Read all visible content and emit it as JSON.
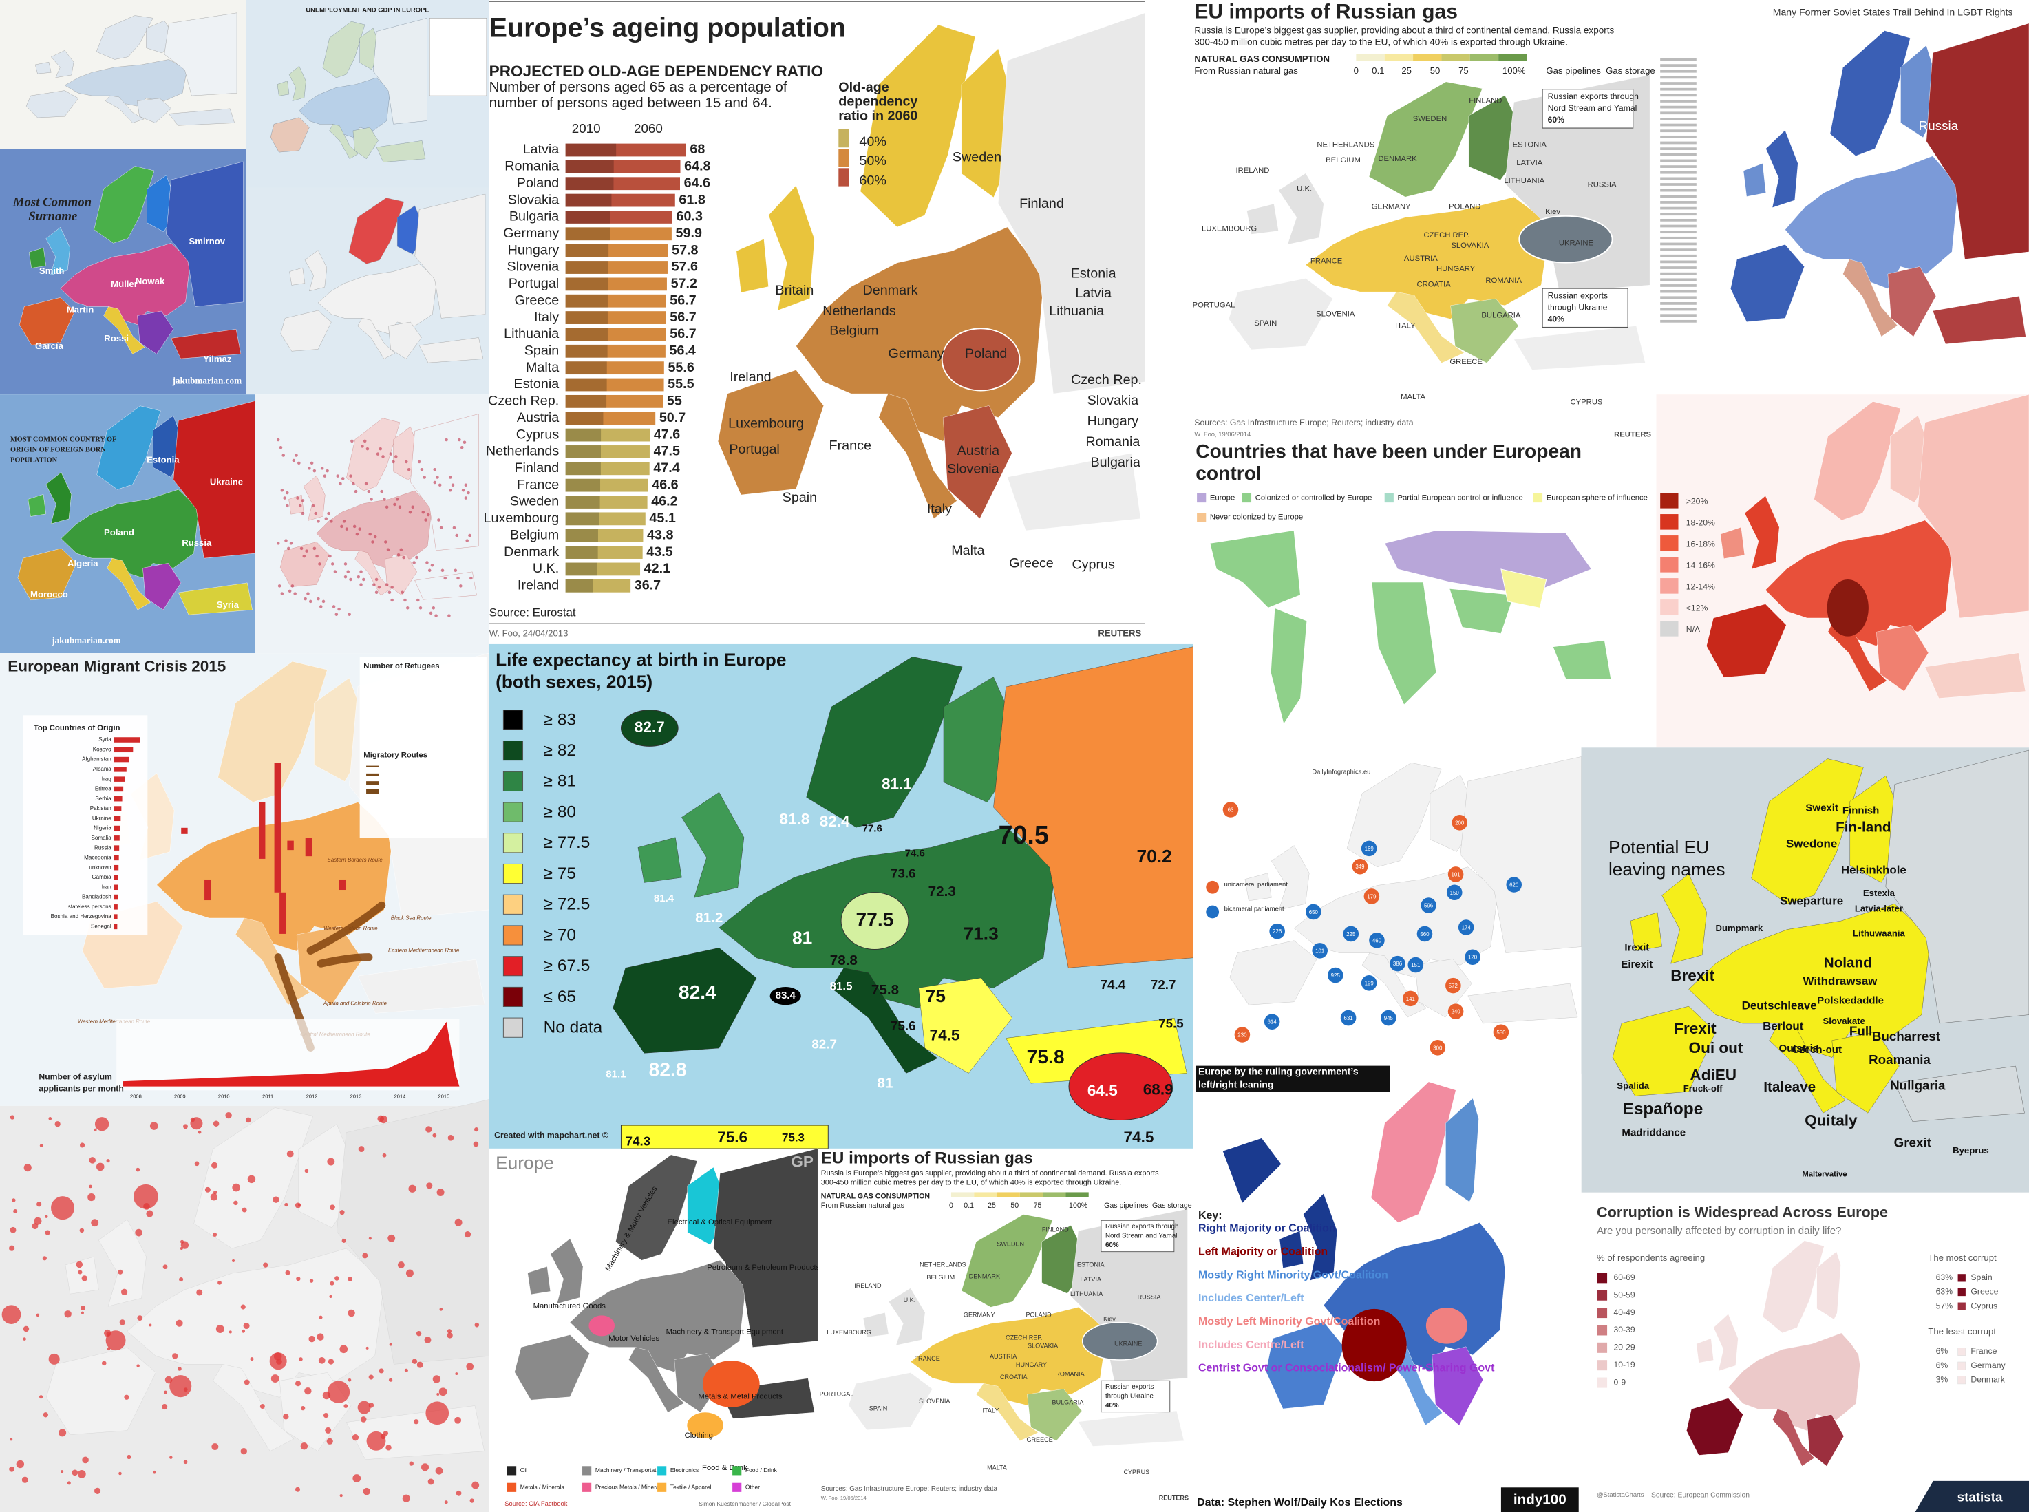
{
  "panels": {
    "unemployment": {
      "title": "UNEMPLOYMENT AND GDP IN EUROPE"
    },
    "surname": {
      "title": [
        "Most Common",
        "Surname"
      ],
      "names": [
        "Martin",
        "García",
        "Müller",
        "Smirnov",
        "Yilmaz",
        "Nowak",
        "Smith",
        "Rossi"
      ],
      "credit": "jakubmarian.com"
    },
    "origin": {
      "title": [
        "MOST COMMON COUNTRY OF",
        "ORIGIN OF FOREIGN BORN",
        "POPULATION"
      ],
      "names": [
        "Ukraine",
        "Russia",
        "Poland",
        "Algeria",
        "Syria",
        "Morocco",
        "Estonia",
        "Ukraine"
      ],
      "credit": "jakubmarian.com"
    },
    "ageing": {
      "title": "Europe’s ageing population",
      "subtitle": "PROJECTED OLD-AGE DEPENDENCY RATIO",
      "description": [
        "Number of persons aged 65 as a percentage of",
        "number of persons aged between 15 and 64."
      ],
      "years": [
        "2010",
        "2060"
      ],
      "countries": [
        "Latvia",
        "Romania",
        "Poland",
        "Slovakia",
        "Bulgaria",
        "Germany",
        "Hungary",
        "Slovenia",
        "Portugal",
        "Greece",
        "Italy",
        "Lithuania",
        "Spain",
        "Malta",
        "Estonia",
        "Czech Rep.",
        "Austria",
        "Cyprus",
        "Netherlands",
        "Finland",
        "France",
        "Sweden",
        "Luxembourg",
        "Belgium",
        "Denmark",
        "U.K.",
        "Ireland"
      ],
      "values": [
        68,
        64.8,
        64.6,
        61.8,
        60.3,
        59.9,
        57.8,
        57.6,
        57.2,
        56.7,
        56.7,
        56.7,
        56.4,
        55.6,
        55.5,
        55,
        50.7,
        47.6,
        47.5,
        47.4,
        46.6,
        46.2,
        45.1,
        43.8,
        43.5,
        42.1,
        36.7
      ],
      "legend_title": [
        "Old-age",
        "dependency",
        "ratio in 2060"
      ],
      "legend": [
        {
          "value": 40,
          "label": "40%",
          "color": "#c6b25e"
        },
        {
          "value": 50,
          "label": "50%",
          "color": "#d4893e"
        },
        {
          "value": 60,
          "label": "60%",
          "color": "#b9503c"
        }
      ],
      "map_labels": [
        "Sweden",
        "Finland",
        "Estonia",
        "Latvia",
        "Lithuania",
        "Britain",
        "Denmark",
        "Netherlands",
        "Belgium",
        "Ireland",
        "Germany",
        "Poland",
        "Czech Rep.",
        "Slovakia",
        "Hungary",
        "Luxembourg",
        "France",
        "Austria",
        "Slovenia",
        "Romania",
        "Bulgaria",
        "Portugal",
        "Spain",
        "Italy",
        "Malta",
        "Greece",
        "Cyprus"
      ],
      "source": "Source: Eurostat",
      "credit": "W. Foo, 24/04/2013",
      "brand": "REUTERS"
    },
    "gas": {
      "title": "EU imports of Russian gas",
      "description": [
        "Russia is Europe’s biggest gas supplier, providing about a third of continental demand. Russia exports",
        "300-450 million cubic metres per day to the EU, of which 40% is exported through Ukraine."
      ],
      "scale_title": "NATURAL GAS CONSUMPTION",
      "scale_subtitle": "From Russian natural gas",
      "scale": [
        "0",
        "0.1",
        "25",
        "50",
        "75",
        "100%"
      ],
      "pipelines": "Gas pipelines",
      "storage": "Gas storage",
      "callout_north": [
        "Russian exports through",
        "Nord Stream and Yamal",
        "60%"
      ],
      "callout_south": [
        "Russian exports",
        "through Ukraine",
        "40%"
      ],
      "countries": [
        "FINLAND",
        "SWEDEN",
        "RUSSIA",
        "ESTONIA",
        "LATVIA",
        "LITHUANIA",
        "DENMARK",
        "NETHERLANDS",
        "BELGIUM",
        "IRELAND",
        "U.K.",
        "GERMANY",
        "POLAND",
        "CZECH REP.",
        "SLOVAKIA",
        "UKRAINE",
        "HUNGARY",
        "ROMANIA",
        "AUSTRIA",
        "FRANCE",
        "LUXEMBOURG",
        "PORTUGAL",
        "SPAIN",
        "SLOVENIA",
        "CROATIA",
        "ITALY",
        "BULGARIA",
        "GREECE",
        "MALTA",
        "CYPRUS",
        "Kiev"
      ],
      "source": "Sources: Gas Infrastructure Europe; Reuters; industry data",
      "credit": "W. Foo, 19/06/2014",
      "brand": "REUTERS"
    },
    "lgbt": {
      "title": "Many Former Soviet States Trail Behind In LGBT Rights",
      "label": "Russia"
    },
    "control": {
      "title": [
        "Countries that have been under European",
        "control"
      ],
      "legend": [
        {
          "label": "Europe",
          "color": "#b8a6d9"
        },
        {
          "label": "Colonized or controlled by Europe",
          "color": "#8fd08a"
        },
        {
          "label": "Partial European control or influence",
          "color": "#a6dcc8"
        },
        {
          "label": "European sphere of influence",
          "color": "#f6f59a"
        },
        {
          "label": "Never colonized by Europe",
          "color": "#f6c48e"
        }
      ]
    },
    "redmap": {
      "legend": [
        {
          "label": ">20%",
          "color": "#a8200f"
        },
        {
          "label": "18-20%",
          "color": "#d8351f"
        },
        {
          "label": "16-18%",
          "color": "#ee5a3c"
        },
        {
          "label": "14-16%",
          "color": "#f48070"
        },
        {
          "label": "12-14%",
          "color": "#f7a39a"
        },
        {
          "label": "<12%",
          "color": "#fad0cb"
        },
        {
          "label": "N/A",
          "color": "#d6d6d6"
        }
      ]
    },
    "migrant": {
      "title": "European Migrant Crisis 2015",
      "top_title": "Top Countries of Origin",
      "origins": [
        "Syria",
        "Kosovo",
        "Afghanistan",
        "Albania",
        "Iraq",
        "Eritrea",
        "Serbia",
        "Pakistan",
        "Ukraine",
        "Nigeria",
        "Somalia",
        "Russia",
        "Macedonia",
        "unknown",
        "Gambia",
        "Iran",
        "Bangladesh",
        "stateless persons",
        "Bosnia and Herzegovina",
        "Senegal"
      ],
      "refugees_title": "Number of Refugees",
      "routes_title": "Migratory Routes",
      "routes": [
        "Eastern Borders Route",
        "Western Balkan Route",
        "Eastern Mediterranean Route",
        "Central Mediterranean Route",
        "Western Mediterranean Route",
        "Apulia and Calabria Route",
        "Black Sea Route"
      ],
      "chart_title": [
        "Number of asylum",
        "applicants per month"
      ],
      "years": [
        "2008",
        "2009",
        "2010",
        "2011",
        "2012",
        "2013",
        "2014",
        "2015"
      ]
    },
    "life": {
      "title": [
        "Life expectancy at birth in Europe",
        "(both sexes, 2015)"
      ],
      "legend": [
        {
          "label": "≥ 83",
          "color": "#000000"
        },
        {
          "label": "≥ 82",
          "color": "#0e4a1f"
        },
        {
          "label": "≥ 81",
          "color": "#2f8545"
        },
        {
          "label": "≥ 80",
          "color": "#6fbb6b"
        },
        {
          "label": "≥ 77.5",
          "color": "#d4f0a0"
        },
        {
          "label": "≥ 75",
          "color": "#ffff33"
        },
        {
          "label": "≥ 72.5",
          "color": "#fdd080"
        },
        {
          "label": "≥ 70",
          "color": "#f6903c"
        },
        {
          "label": "≥ 67.5",
          "color": "#e21f26"
        },
        {
          "label": "≤ 65",
          "color": "#7a0008"
        },
        {
          "label": "No data",
          "color": "#d4d4d4"
        }
      ],
      "values": [
        "82.7",
        "81.1",
        "81.8",
        "82.4",
        "70.5",
        "70.2",
        "77.6",
        "74.6",
        "73.6",
        "72.3",
        "81.4",
        "81.2",
        "81",
        "77.5",
        "71.3",
        "78.8",
        "82.4",
        "83.4",
        "81.5",
        "75.8",
        "75",
        "74.4",
        "72.7",
        "75.5",
        "74.5",
        "75.6",
        "75.8",
        "82.7",
        "82.8",
        "81",
        "81.1",
        "64.5",
        "68.9",
        "74.5",
        "74.3",
        "75.6",
        "75.3"
      ],
      "credit": "Created with mapchart.net ©"
    },
    "exports": {
      "title": "Europe",
      "brand": "GP",
      "legend": [
        {
          "label": "Oil",
          "color": "#222222"
        },
        {
          "label": "Machinery / Transportation",
          "color": "#8a8a8a"
        },
        {
          "label": "Electronics",
          "color": "#19c6d6"
        },
        {
          "label": "Food / Drink",
          "color": "#39b54a"
        },
        {
          "label": "Metals / Minerals",
          "color": "#f15a24"
        },
        {
          "label": "Precious Metals / Minerals",
          "color": "#ee5d8f"
        },
        {
          "label": "Textile / Apparel",
          "color": "#fbb03b"
        },
        {
          "label": "Other",
          "color": "#d63fd6"
        }
      ],
      "labels": [
        "Machinery & Motor Vehicles",
        "Electrical & Optical Equipment",
        "Petroleum & Petroleum Products",
        "Manufactured Goods",
        "Motor Vehicles",
        "Machinery & Transport Equipment",
        "Metals & Metal Products",
        "Clothing",
        "Food & Drink"
      ],
      "source": "Source: CIA Factbook",
      "credit": "Simon Kuestenmacher / GlobalPost"
    },
    "parliament": {
      "brand": "DailyInfographics.eu",
      "legend": [
        "unicameral parliament",
        "bicameral parliament"
      ],
      "seats": [
        "63",
        "200",
        "169",
        "349",
        "179",
        "101",
        "620",
        "650",
        "226",
        "150",
        "225",
        "460",
        "560",
        "174",
        "925",
        "631",
        "199",
        "386",
        "614",
        "945",
        "572",
        "240",
        "300",
        "550",
        "230",
        "141",
        "101",
        "151",
        "596",
        "120"
      ]
    },
    "leaving": {
      "title": [
        "Potential EU",
        "leaving names"
      ],
      "names": [
        "Brexit",
        "Irexit",
        "Eirexit",
        "Frexit",
        "Oui out",
        "AdiEU",
        "Fruck-off",
        "Españope",
        "Madriddance",
        "Spalida",
        "Italeave",
        "Quitaly",
        "Grexit",
        "Noland",
        "Withdrawsaw",
        "Polskedaddle",
        "Deutschleave",
        "Swexit",
        "Swedone",
        "Fin-land",
        "Finnish",
        "Helsinkhole",
        "Dumpmark",
        "Sweparture",
        "Czech-out",
        "Bucharrest",
        "Roamania",
        "Nullgaria",
        "Byeprus",
        "Maltervative",
        "Full",
        "Berlout",
        "Outstria",
        "Slovakate",
        "Estexia",
        "Latvia-later",
        "Lithuwaania"
      ]
    },
    "gov": {
      "title": [
        "Europe by the ruling government’s",
        "left/right leaning"
      ],
      "key_title": "Key:",
      "key": [
        {
          "label": "Right Majority or Coalition",
          "color": "#1a2f8c"
        },
        {
          "label": "Left Majority or Coalition",
          "color": "#8b0000"
        },
        {
          "label": "Mostly Right Minority Govt/Coalition",
          "color": "#4a8ad8"
        },
        {
          "label": "Includes Center/Left",
          "color": "#7fb0e8"
        },
        {
          "label": "Mostly Left Minority Govt/Coalition",
          "color": "#f08080"
        },
        {
          "label": "Includes Centre/Left",
          "color": "#f4a6b8"
        },
        {
          "label": "Centrist Govt or Consociationalism/ Power-Sharing Govt",
          "color": "#9b30d0"
        }
      ],
      "source": "Data: Stephen Wolf/Daily Kos Elections",
      "brand": "indy100"
    },
    "corruption": {
      "title": "Corruption is Widespread Across Europe",
      "subtitle": "Are you personally affected by corruption in daily life?",
      "legend_title": "% of respondents agreeing",
      "legend": [
        {
          "label": "60-69",
          "color": "#7a0a1e"
        },
        {
          "label": "50-59",
          "color": "#9c2f3e"
        },
        {
          "label": "40-49",
          "color": "#b9555e"
        },
        {
          "label": "30-39",
          "color": "#cf7f83"
        },
        {
          "label": "20-29",
          "color": "#e0a9aa"
        },
        {
          "label": "10-19",
          "color": "#ecc9c9"
        },
        {
          "label": "0-9",
          "color": "#f6e6e6"
        }
      ],
      "most_title": "The most corrupt",
      "most": [
        {
          "value": "63%",
          "country": "Spain"
        },
        {
          "value": "63%",
          "country": "Greece"
        },
        {
          "value": "57%",
          "country": "Cyprus"
        }
      ],
      "least_title": "The least corrupt",
      "least": [
        {
          "value": "6%",
          "country": "France"
        },
        {
          "value": "6%",
          "country": "Germany"
        },
        {
          "value": "3%",
          "country": "Denmark"
        }
      ],
      "handle": "@StatistaCharts",
      "source": "Source: European Commission",
      "brand": "statista"
    }
  }
}
